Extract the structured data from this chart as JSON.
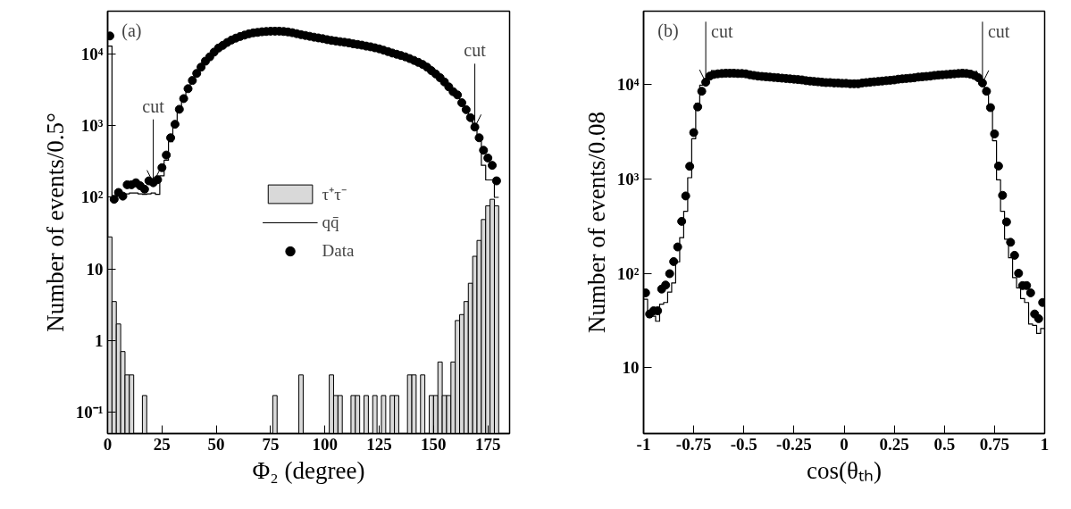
{
  "chart_data": [
    {
      "type": "scatter",
      "xlabel": "Φ₂ (degree)",
      "ylabel": "Number of events/0.5°",
      "log": "y",
      "xlim": [
        0,
        185
      ],
      "ylim": [
        0.05,
        40000
      ],
      "xticks": [
        0,
        25,
        50,
        75,
        100,
        125,
        150,
        175
      ],
      "yticks": [
        {
          "value": 0.1,
          "label": "10⁻¹"
        },
        {
          "value": 1,
          "label": "1"
        },
        {
          "value": 10,
          "label": "10"
        },
        {
          "value": 100,
          "label": "10²"
        },
        {
          "value": 1000,
          "label": "10³"
        },
        {
          "value": 10000,
          "label": "10⁴"
        }
      ],
      "legend": "center",
      "x": [
        1,
        3,
        5,
        7,
        9,
        11,
        13,
        15,
        17,
        19,
        21,
        23,
        25,
        27,
        29,
        31,
        33,
        35,
        37,
        39,
        41,
        43,
        45,
        47,
        49,
        51,
        53,
        55,
        57,
        59,
        61,
        63,
        65,
        67,
        69,
        71,
        73,
        75,
        77,
        79,
        81,
        83,
        85,
        87,
        89,
        91,
        93,
        95,
        97,
        99,
        101,
        103,
        105,
        107,
        109,
        111,
        113,
        115,
        117,
        119,
        121,
        123,
        125,
        127,
        129,
        131,
        133,
        135,
        137,
        139,
        141,
        143,
        145,
        147,
        149,
        151,
        153,
        155,
        157,
        159,
        161,
        163,
        165,
        167,
        169,
        171,
        173,
        175,
        177,
        179
      ],
      "series": [
        {
          "name": "τ⁺τ⁻",
          "type": "bar",
          "color": "#d9d9d9",
          "values": [
            28,
            3.5,
            1.7,
            0.7,
            0.33,
            0.33,
            null,
            null,
            0.17,
            null,
            null,
            null,
            null,
            null,
            null,
            null,
            null,
            null,
            null,
            null,
            null,
            null,
            null,
            null,
            null,
            null,
            null,
            null,
            null,
            null,
            null,
            null,
            null,
            null,
            null,
            null,
            null,
            null,
            0.17,
            null,
            null,
            null,
            null,
            null,
            0.33,
            null,
            null,
            null,
            null,
            null,
            null,
            0.33,
            0.17,
            0.17,
            null,
            null,
            0.17,
            0.17,
            null,
            0.17,
            null,
            0.17,
            null,
            0.17,
            null,
            0.17,
            0.17,
            null,
            null,
            0.33,
            0.33,
            null,
            0.33,
            null,
            0.17,
            0.17,
            0.5,
            0.17,
            0.17,
            0.5,
            1.9,
            2.3,
            3.5,
            6.3,
            15,
            25,
            49,
            76,
            94,
            76
          ]
        },
        {
          "name": "qq̄",
          "type": "step",
          "color": "#000000",
          "values": [
            13000,
            95,
            105,
            110,
            112,
            115,
            115,
            112,
            110,
            112,
            115,
            110,
            200,
            330,
            600,
            1000,
            1600,
            2300,
            3200,
            4300,
            5400,
            6600,
            8000,
            9200,
            10700,
            12200,
            13300,
            14600,
            15800,
            16800,
            17700,
            18500,
            19300,
            19900,
            20200,
            20600,
            20800,
            21000,
            21000,
            21000,
            20800,
            20500,
            20000,
            19400,
            18800,
            18300,
            17800,
            17300,
            16900,
            16500,
            16000,
            15600,
            15300,
            15000,
            14700,
            14400,
            14000,
            13700,
            13400,
            13000,
            12700,
            12300,
            11900,
            11400,
            10900,
            10400,
            10000,
            9600,
            9200,
            8700,
            8200,
            7700,
            7200,
            6600,
            5900,
            5300,
            4700,
            4100,
            3500,
            3000,
            2600,
            2000,
            1600,
            1250,
            920,
            620,
            280,
            175,
            175,
            100
          ]
        },
        {
          "name": "Data",
          "marker": "circle",
          "color": "#000000",
          "values": [
            18000,
            94,
            117,
            104,
            150,
            150,
            160,
            145,
            130,
            170,
            160,
            177,
            260,
            390,
            680,
            1050,
            1700,
            2400,
            3300,
            4300,
            5400,
            6600,
            8000,
            9200,
            10700,
            12200,
            13300,
            14600,
            15800,
            16800,
            17700,
            18500,
            19300,
            19900,
            20200,
            20600,
            20800,
            21000,
            21000,
            21000,
            20800,
            20500,
            20000,
            19400,
            18800,
            18300,
            17800,
            17300,
            16900,
            16500,
            16000,
            15600,
            15300,
            15000,
            14700,
            14400,
            14000,
            13700,
            13400,
            13000,
            12700,
            12300,
            11900,
            11400,
            10900,
            10400,
            10000,
            9600,
            9200,
            8700,
            8200,
            7700,
            7200,
            6600,
            5900,
            5300,
            4700,
            4100,
            3500,
            3000,
            2700,
            2100,
            1680,
            1300,
            960,
            680,
            455,
            355,
            280,
            170
          ]
        }
      ],
      "annotations": [
        "(a)",
        {
          "text": "cut",
          "x": 21,
          "y": 160
        },
        {
          "text": "cut",
          "x": 169,
          "y": 960
        }
      ]
    },
    {
      "type": "scatter",
      "xlabel": "cos(θₜₕ)",
      "ylabel": "Number of events/0.08",
      "log": "y",
      "xlim": [
        -1,
        1
      ],
      "ylim": [
        2,
        60000
      ],
      "xticks": [
        -1,
        -0.75,
        -0.5,
        -0.25,
        0,
        0.25,
        0.5,
        0.75,
        1
      ],
      "yticks": [
        {
          "value": 10,
          "label": "10"
        },
        {
          "value": 100,
          "label": "10²"
        },
        {
          "value": 1000,
          "label": "10³"
        },
        {
          "value": 10000,
          "label": "10⁴"
        }
      ],
      "x": [
        -0.99,
        -0.97,
        -0.95,
        -0.93,
        -0.91,
        -0.89,
        -0.87,
        -0.85,
        -0.83,
        -0.81,
        -0.79,
        -0.77,
        -0.75,
        -0.73,
        -0.71,
        -0.69,
        -0.67,
        -0.65,
        -0.63,
        -0.61,
        -0.59,
        -0.57,
        -0.55,
        -0.53,
        -0.51,
        -0.49,
        -0.47,
        -0.45,
        -0.43,
        -0.41,
        -0.39,
        -0.37,
        -0.35,
        -0.33,
        -0.31,
        -0.29,
        -0.27,
        -0.25,
        -0.23,
        -0.21,
        -0.19,
        -0.17,
        -0.15,
        -0.13,
        -0.11,
        -0.09,
        -0.07,
        -0.05,
        -0.03,
        -0.01,
        0.01,
        0.03,
        0.05,
        0.07,
        0.09,
        0.11,
        0.13,
        0.15,
        0.17,
        0.19,
        0.21,
        0.23,
        0.25,
        0.27,
        0.29,
        0.31,
        0.33,
        0.35,
        0.37,
        0.39,
        0.41,
        0.43,
        0.45,
        0.47,
        0.49,
        0.51,
        0.53,
        0.55,
        0.57,
        0.59,
        0.61,
        0.63,
        0.65,
        0.67,
        0.69,
        0.71,
        0.73,
        0.75,
        0.77,
        0.79,
        0.81,
        0.83,
        0.85,
        0.87,
        0.89,
        0.91,
        0.93,
        0.95,
        0.97,
        0.99
      ],
      "series": [
        {
          "type": "step",
          "color": "#000000",
          "values": [
            53,
            34,
            35,
            31,
            47,
            49,
            63,
            79,
            132,
            238,
            454,
            1030,
            2670,
            6350,
            9870,
            10600,
            12300,
            12800,
            13000,
            13100,
            13200,
            13200,
            13200,
            13100,
            13100,
            13000,
            12700,
            12500,
            12300,
            12200,
            12100,
            12000,
            11900,
            11800,
            11700,
            11600,
            11500,
            11400,
            11300,
            11200,
            11000,
            10900,
            10800,
            10700,
            10600,
            10500,
            10500,
            10400,
            10400,
            10300,
            10300,
            10200,
            10200,
            10200,
            10400,
            10500,
            10600,
            10700,
            10800,
            10900,
            11000,
            11100,
            11200,
            11400,
            11500,
            11600,
            11700,
            11800,
            12000,
            12100,
            12200,
            12300,
            12500,
            12600,
            12700,
            12800,
            12900,
            13000,
            13100,
            13200,
            13100,
            12900,
            12500,
            11800,
            10400,
            8500,
            5600,
            2540,
            980,
            454,
            230,
            146,
            90,
            70,
            54,
            49,
            29,
            28,
            23,
            26
          ]
        },
        {
          "marker": "circle",
          "color": "#000000",
          "values": [
            62,
            37,
            40,
            40,
            68,
            75,
            99,
            133,
            190,
            355,
            660,
            1360,
            3100,
            5800,
            8500,
            10600,
            12300,
            12800,
            13000,
            13100,
            13200,
            13200,
            13200,
            13100,
            13100,
            13000,
            12700,
            12500,
            12300,
            12200,
            12100,
            12000,
            11900,
            11800,
            11700,
            11600,
            11500,
            11400,
            11300,
            11200,
            11000,
            10900,
            10800,
            10700,
            10600,
            10500,
            10500,
            10400,
            10400,
            10300,
            10300,
            10200,
            10200,
            10200,
            10400,
            10500,
            10600,
            10700,
            10800,
            10900,
            11000,
            11100,
            11200,
            11400,
            11500,
            11600,
            11700,
            11800,
            12000,
            12100,
            12200,
            12300,
            12500,
            12600,
            12700,
            12800,
            12900,
            13000,
            13100,
            13200,
            13100,
            12900,
            12500,
            11800,
            10400,
            8500,
            5700,
            3000,
            1370,
            670,
            350,
            213,
            155,
            100,
            74,
            74,
            62,
            37,
            33,
            49
          ]
        }
      ],
      "annotations": [
        "(b)",
        {
          "text": "cut",
          "x": -0.69,
          "y": 10600
        },
        {
          "text": "cut",
          "x": 0.69,
          "y": 10400
        }
      ]
    }
  ]
}
